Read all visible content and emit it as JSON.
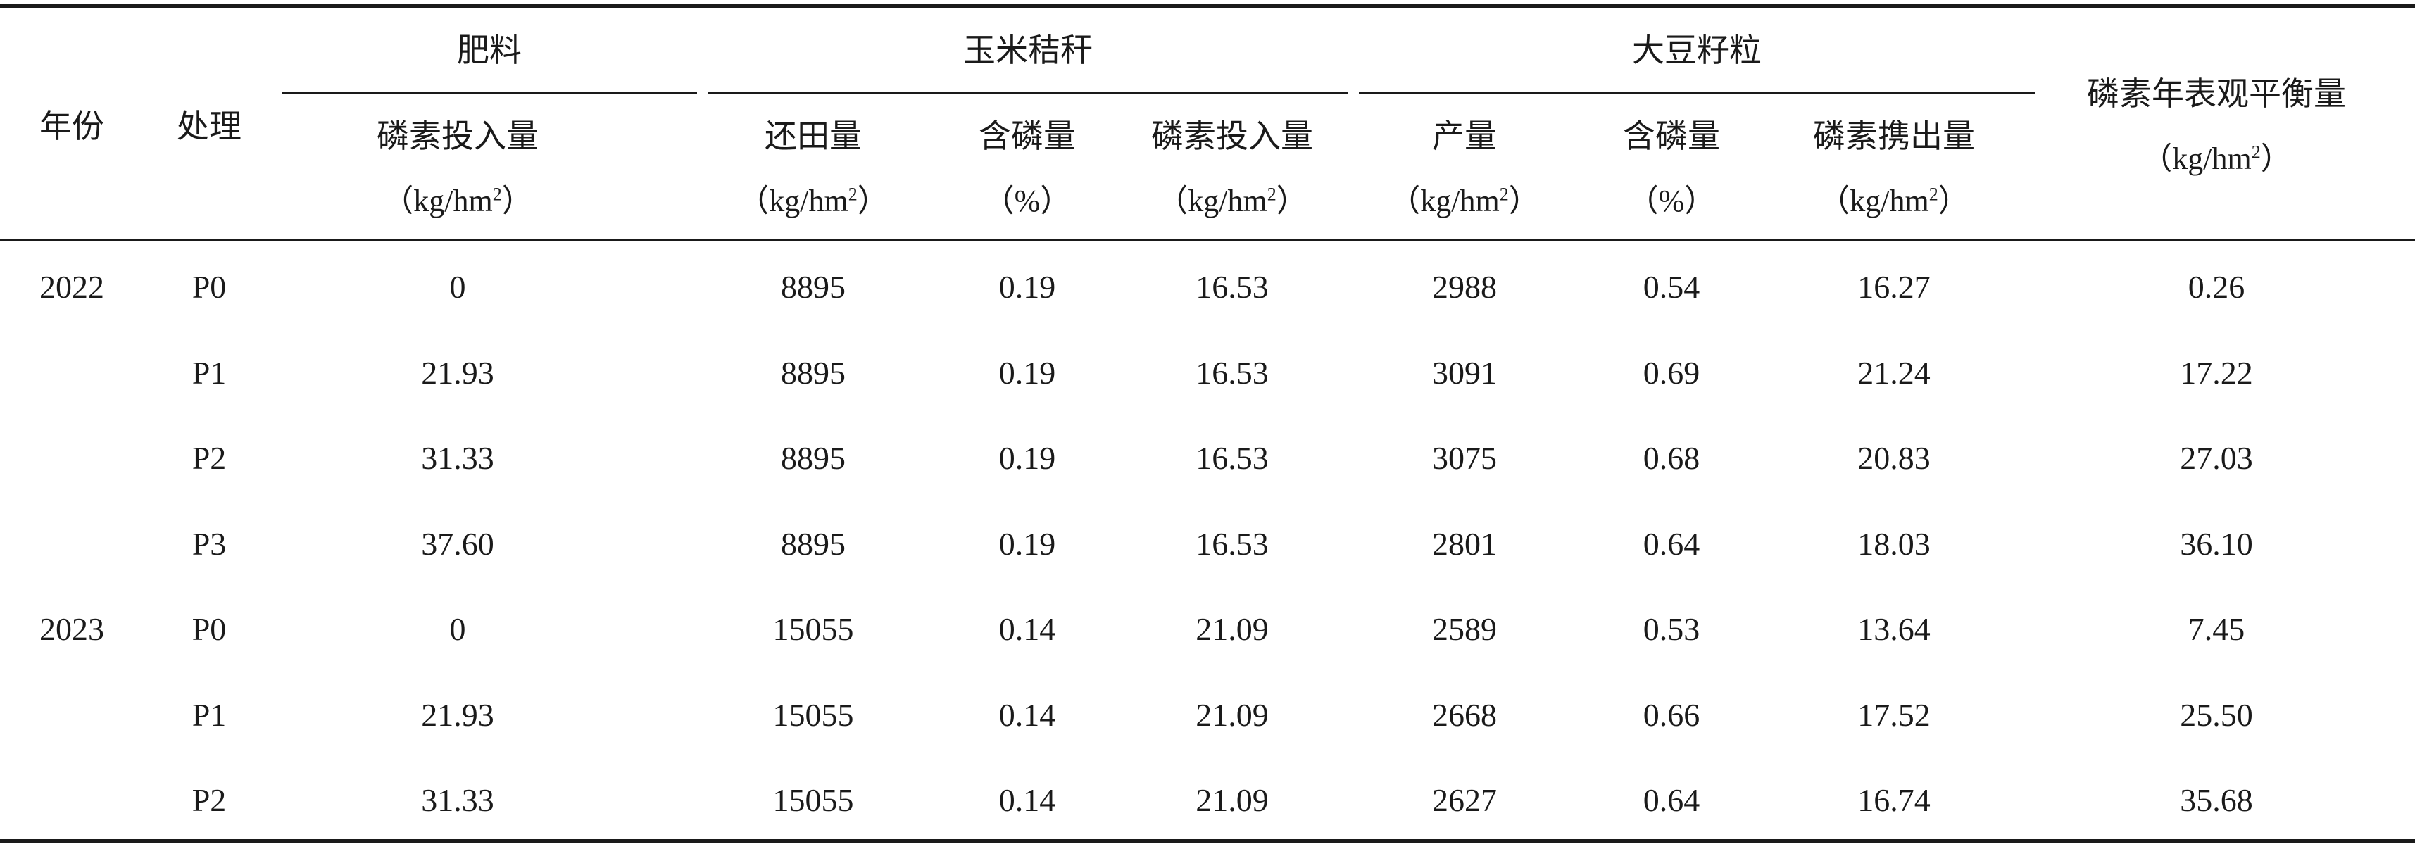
{
  "table": {
    "col_year": "年份",
    "col_treatment": "处理",
    "group_fertilizer": "肥料",
    "group_straw": "玉米秸秆",
    "group_soybean": "大豆籽粒",
    "col_balance": "磷素年表观平衡量",
    "col_balance_unit": "kg/hm",
    "fert_p_input": "磷素投入量",
    "fert_p_input_unit": "kg/hm",
    "straw_return": "还田量",
    "straw_return_unit": "kg/hm",
    "straw_p_content": "含磷量",
    "straw_p_content_unit": "%",
    "straw_p_input": "磷素投入量",
    "straw_p_input_unit": "kg/hm",
    "soy_yield": "产量",
    "soy_yield_unit": "kg/hm",
    "soy_p_content": "含磷量",
    "soy_p_content_unit": "%",
    "soy_p_output": "磷素携出量",
    "soy_p_output_unit": "kg/hm",
    "unit_exponent": "2",
    "rows": [
      [
        "2022",
        "P0",
        "0",
        "8895",
        "0.19",
        "16.53",
        "2988",
        "0.54",
        "16.27",
        "0.26"
      ],
      [
        "",
        "P1",
        "21.93",
        "8895",
        "0.19",
        "16.53",
        "3091",
        "0.69",
        "21.24",
        "17.22"
      ],
      [
        "",
        "P2",
        "31.33",
        "8895",
        "0.19",
        "16.53",
        "3075",
        "0.68",
        "20.83",
        "27.03"
      ],
      [
        "",
        "P3",
        "37.60",
        "8895",
        "0.19",
        "16.53",
        "2801",
        "0.64",
        "18.03",
        "36.10"
      ],
      [
        "2023",
        "P0",
        "0",
        "15055",
        "0.14",
        "21.09",
        "2589",
        "0.53",
        "13.64",
        "7.45"
      ],
      [
        "",
        "P1",
        "21.93",
        "15055",
        "0.14",
        "21.09",
        "2668",
        "0.66",
        "17.52",
        "25.50"
      ],
      [
        "",
        "P2",
        "31.33",
        "15055",
        "0.14",
        "21.09",
        "2627",
        "0.64",
        "16.74",
        "35.68"
      ]
    ]
  }
}
